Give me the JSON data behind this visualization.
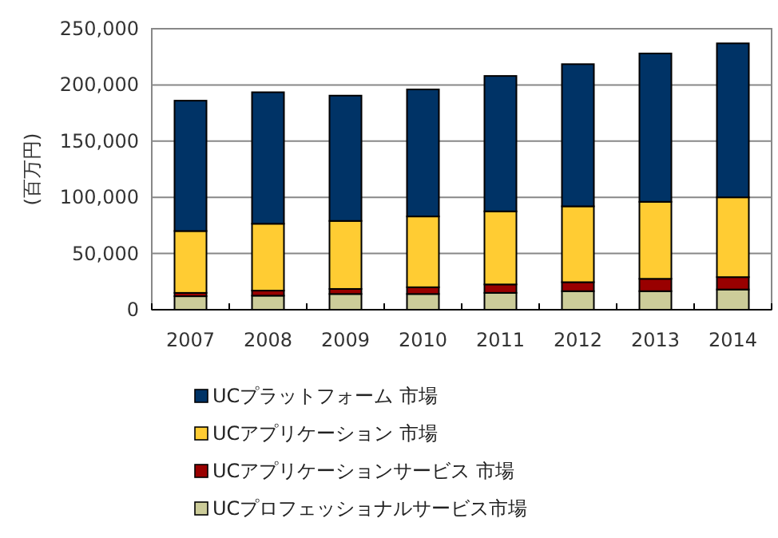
{
  "chart_data": {
    "type": "bar",
    "stacked": true,
    "ylabel": "(百万円)",
    "categories": [
      "2007",
      "2008",
      "2009",
      "2010",
      "2011",
      "2012",
      "2013",
      "2014"
    ],
    "series": [
      {
        "name": "UCプロフェッショナルサービス市場",
        "color": "#cccc99",
        "values": [
          12000,
          12500,
          14000,
          14000,
          15000,
          16500,
          16500,
          18000
        ]
      },
      {
        "name": "UCアプリケーションサービス 市場",
        "color": "#990000",
        "values": [
          3000,
          4500,
          4500,
          6000,
          7500,
          8000,
          11000,
          11000
        ]
      },
      {
        "name": "UCアプリケーション 市場",
        "color": "#ffcc33",
        "values": [
          55000,
          59500,
          60500,
          63000,
          65000,
          67500,
          68500,
          71000
        ]
      },
      {
        "name": "UCプラットフォーム 市場",
        "color": "#003366",
        "values": [
          116000,
          117000,
          111500,
          113000,
          120500,
          126500,
          132000,
          137000
        ]
      }
    ],
    "ylim": [
      0,
      250000
    ],
    "yticks": [
      {
        "value": 0,
        "label": "0"
      },
      {
        "value": 50000,
        "label": "50,000"
      },
      {
        "value": 100000,
        "label": "100,000"
      },
      {
        "value": 150000,
        "label": "150,000"
      },
      {
        "value": 200000,
        "label": "200,000"
      },
      {
        "value": 250000,
        "label": "250,000"
      }
    ],
    "grid": "y",
    "legend": "bottom"
  }
}
